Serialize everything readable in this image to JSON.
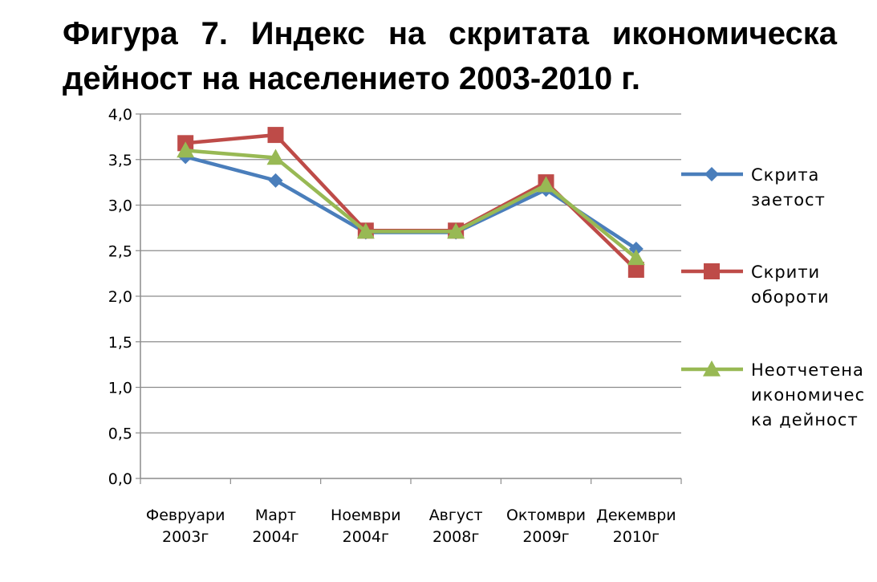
{
  "title": {
    "line1": "Фигура 7. Индекс на скритата икономическа",
    "line2": "дейност на населението 2003-2010 г."
  },
  "chart_data": {
    "type": "line",
    "title": "Фигура 7. Индекс на скритата икономическа дейност на населението 2003-2010 г.",
    "categories": [
      [
        "Февруари",
        "2003г"
      ],
      [
        "Март",
        "2004г"
      ],
      [
        "Ноември",
        "2004г"
      ],
      [
        "Август",
        "2008г"
      ],
      [
        "Октомври",
        "2009г"
      ],
      [
        "Декември",
        "2010г"
      ]
    ],
    "ylim": [
      0,
      4
    ],
    "yticks": [
      "0,0",
      "0,5",
      "1,0",
      "1,5",
      "2,0",
      "2,5",
      "3,0",
      "3,5",
      "4,0"
    ],
    "grid": true,
    "legend_position": "right",
    "series": [
      {
        "name": [
          "Скрита",
          "заетост"
        ],
        "values": [
          3.53,
          3.27,
          2.7,
          2.7,
          3.17,
          2.52
        ],
        "color": "#4a7ebb",
        "marker": "diamond"
      },
      {
        "name": [
          "Скрити",
          "обороти"
        ],
        "values": [
          3.68,
          3.77,
          2.72,
          2.72,
          3.25,
          2.29
        ],
        "color": "#be4b48",
        "marker": "square"
      },
      {
        "name": [
          "Неотчетена",
          "икономичес",
          "ка дейност"
        ],
        "values": [
          3.6,
          3.52,
          2.71,
          2.71,
          3.22,
          2.42
        ],
        "color": "#98b954",
        "marker": "triangle"
      }
    ]
  }
}
